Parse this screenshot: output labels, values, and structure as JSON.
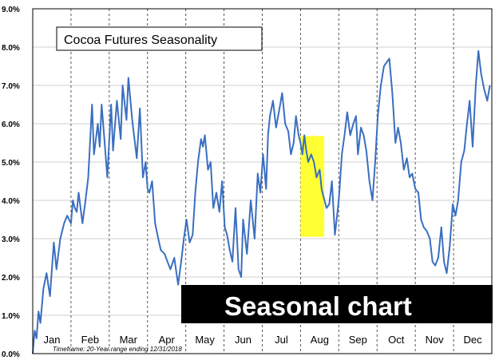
{
  "colors": {
    "line": "#3a6fc0",
    "highlight": "#ffff33",
    "grid_h": "#cfcfcf",
    "grid_v": "#555555",
    "overlay_bg": "#000000",
    "overlay_text": "#ffffff"
  },
  "overlay_label": "Seasonal chart",
  "chart_data": {
    "type": "line",
    "title": "Cocoa Futures Seasonality",
    "footnote": "Timeframe:  20-Year range ending 12/31/2018",
    "ylim": [
      0,
      9
    ],
    "yticks": [
      0,
      1,
      2,
      3,
      4,
      5,
      6,
      7,
      8,
      9
    ],
    "ytick_labels": [
      "0.0%",
      "1.0%",
      "2.0%",
      "3.0%",
      "4.0%",
      "5.0%",
      "6.0%",
      "7.0%",
      "8.0%",
      "9.0%"
    ],
    "xlim": [
      0,
      12
    ],
    "months": [
      "Jan",
      "Feb",
      "Mar",
      "Apr",
      "May",
      "Jun",
      "Jul",
      "Aug",
      "Sep",
      "Oct",
      "Nov",
      "Dec"
    ],
    "grid": true,
    "highlight": {
      "x": [
        7.0,
        7.62
      ],
      "y": [
        3.05,
        5.68
      ]
    },
    "series": [
      {
        "x": [
          0.0,
          0.05,
          0.1,
          0.15,
          0.2,
          0.28,
          0.36,
          0.45,
          0.55,
          0.62,
          0.72,
          0.82,
          0.9,
          1.0,
          1.05,
          1.1,
          1.15,
          1.2,
          1.3,
          1.38,
          1.45,
          1.55,
          1.6,
          1.7,
          1.75,
          1.8,
          1.88,
          1.95,
          2.05,
          2.1,
          2.2,
          2.3,
          2.35,
          2.45,
          2.5,
          2.6,
          2.72,
          2.8,
          2.88,
          2.95,
          3.0,
          3.05,
          3.12,
          3.2,
          3.28,
          3.35,
          3.45,
          3.52,
          3.6,
          3.7,
          3.8,
          3.88,
          3.95,
          4.02,
          4.1,
          4.18,
          4.25,
          4.32,
          4.4,
          4.45,
          4.5,
          4.58,
          4.65,
          4.72,
          4.8,
          4.88,
          4.95,
          5.02,
          5.08,
          5.15,
          5.22,
          5.3,
          5.38,
          5.45,
          5.5,
          5.6,
          5.7,
          5.8,
          5.88,
          5.95,
          6.02,
          6.1,
          6.15,
          6.2,
          6.28,
          6.36,
          6.45,
          6.52,
          6.6,
          6.68,
          6.75,
          6.82,
          6.88,
          6.95,
          7.0,
          7.05,
          7.1,
          7.15,
          7.2,
          7.28,
          7.35,
          7.42,
          7.5,
          7.55,
          7.6,
          7.68,
          7.75,
          7.82,
          7.9,
          8.0,
          8.08,
          8.15,
          8.22,
          8.3,
          8.38,
          8.45,
          8.5,
          8.58,
          8.65,
          8.72,
          8.8,
          8.88,
          8.95,
          9.02,
          9.1,
          9.18,
          9.25,
          9.32,
          9.4,
          9.48,
          9.55,
          9.62,
          9.7,
          9.78,
          9.85,
          9.92,
          10.0,
          10.08,
          10.15,
          10.22,
          10.3,
          10.38,
          10.45,
          10.52,
          10.6,
          10.68,
          10.75,
          10.82,
          10.9,
          10.98,
          11.05,
          11.12,
          11.2,
          11.28,
          11.35,
          11.42,
          11.5,
          11.58,
          11.65,
          11.72,
          11.8,
          11.88,
          11.95
        ],
        "y": [
          0.0,
          0.6,
          0.4,
          1.1,
          0.8,
          1.7,
          2.1,
          1.5,
          2.9,
          2.2,
          3.0,
          3.4,
          3.6,
          3.4,
          4.0,
          3.8,
          3.7,
          4.2,
          3.4,
          4.0,
          4.6,
          6.5,
          5.2,
          6.0,
          5.4,
          6.5,
          5.5,
          4.6,
          6.5,
          5.3,
          6.6,
          5.6,
          7.0,
          6.1,
          7.2,
          6.1,
          5.1,
          6.4,
          4.6,
          5.0,
          4.3,
          4.2,
          4.5,
          3.4,
          3.0,
          2.7,
          2.6,
          2.4,
          2.2,
          2.5,
          1.8,
          2.4,
          3.0,
          3.5,
          2.9,
          3.1,
          4.2,
          5.0,
          5.6,
          5.4,
          5.7,
          4.8,
          5.0,
          3.8,
          4.2,
          3.7,
          4.5,
          3.3,
          3.1,
          2.7,
          2.4,
          3.8,
          2.2,
          2.0,
          3.5,
          2.6,
          4.0,
          3.0,
          4.7,
          4.2,
          5.2,
          4.3,
          5.7,
          6.2,
          6.6,
          5.9,
          6.4,
          6.8,
          6.0,
          5.8,
          5.2,
          5.5,
          6.2,
          5.7,
          5.5,
          5.2,
          5.7,
          5.3,
          5.0,
          5.2,
          5.0,
          4.6,
          4.8,
          4.3,
          4.1,
          3.8,
          3.9,
          4.5,
          3.1,
          4.0,
          5.2,
          5.7,
          6.3,
          5.7,
          6.0,
          6.2,
          5.2,
          5.9,
          5.7,
          5.3,
          4.5,
          4.0,
          5.0,
          6.2,
          7.0,
          7.5,
          7.6,
          7.7,
          6.8,
          5.5,
          5.9,
          5.5,
          4.8,
          5.1,
          4.6,
          4.7,
          4.3,
          4.2,
          3.5,
          3.3,
          3.2,
          3.0,
          2.4,
          2.3,
          2.5,
          3.3,
          2.4,
          2.1,
          2.8,
          3.9,
          3.6,
          4.0,
          5.0,
          5.3,
          6.0,
          6.6,
          5.4,
          7.0,
          7.9,
          7.3,
          6.9,
          6.6,
          7.0
        ]
      }
    ]
  }
}
